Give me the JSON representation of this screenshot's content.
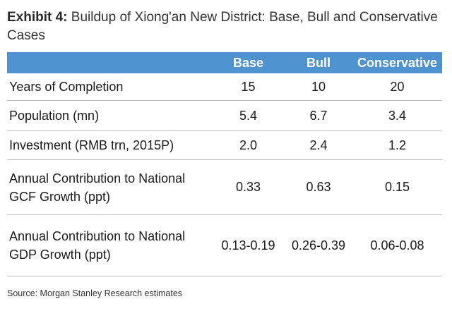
{
  "title": {
    "prefix": "Exhibit 4:",
    "text": "Buildup of Xiong'an New District: Base, Bull and Conservative Cases"
  },
  "table": {
    "columns": [
      "Base",
      "Bull",
      "Conservative"
    ],
    "rows": [
      {
        "label": "Years of Completion",
        "values": [
          "15",
          "10",
          "20"
        ]
      },
      {
        "label": "Population (mn)",
        "values": [
          "5.4",
          "6.7",
          "3.4"
        ]
      },
      {
        "label": "Investment (RMB trn, 2015P)",
        "values": [
          "2.0",
          "2.4",
          "1.2"
        ]
      },
      {
        "label": "Annual Contribution to National GCF Growth (ppt)",
        "values": [
          "0.33",
          "0.63",
          "0.15"
        ]
      },
      {
        "label": "Annual Contribution to National GDP Growth (ppt)",
        "values": [
          "0.13-0.19",
          "0.26-0.39",
          "0.06-0.08"
        ]
      }
    ]
  },
  "source": "Source: Morgan Stanley Research estimates",
  "colors": {
    "header_bg": "#4e93cf",
    "header_text": "#ffffff",
    "rule": "#bdbdbd"
  }
}
